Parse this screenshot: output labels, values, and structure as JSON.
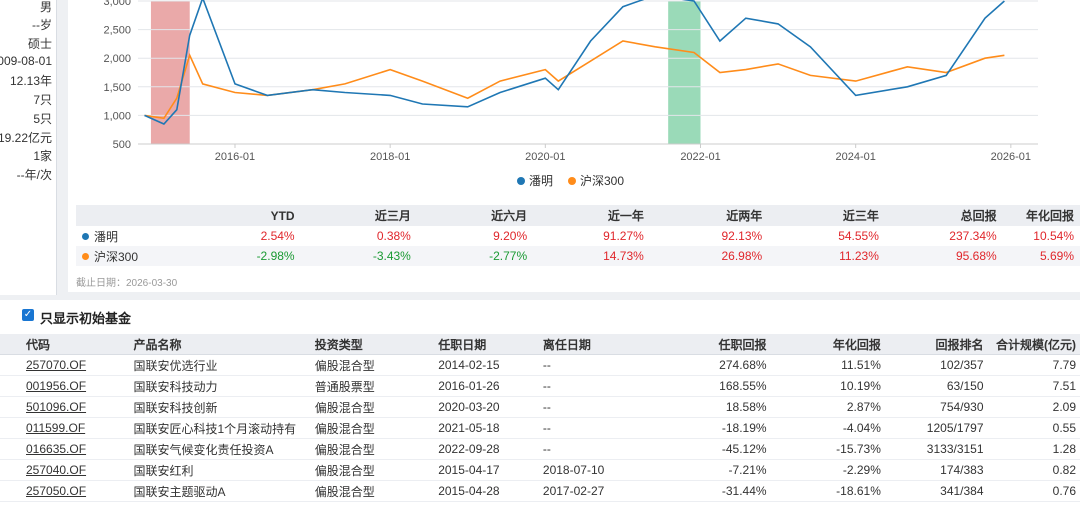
{
  "profile": {
    "values": [
      "男",
      "--岁",
      "硕士",
      "009-08-01",
      "12.13年",
      "7只",
      "5只",
      "19.22亿元",
      "1家",
      "--年/次"
    ]
  },
  "chart_data": {
    "type": "line",
    "x_ticks": [
      "2016-01",
      "2018-01",
      "2020-01",
      "2022-01",
      "2024-01",
      "2026-01"
    ],
    "y_ticks": [
      "3,000",
      "2,500",
      "2,000",
      "1,500",
      "1,000",
      "500"
    ],
    "ylim": [
      500,
      3000
    ],
    "series": [
      {
        "name": "潘明",
        "color": "#1f77b4",
        "x": [
          "2014-11",
          "2015-02",
          "2015-04",
          "2015-06",
          "2015-08",
          "2016-01",
          "2016-06",
          "2017-01",
          "2017-06",
          "2018-01",
          "2018-06",
          "2019-01",
          "2019-06",
          "2020-01",
          "2020-03",
          "2020-08",
          "2021-01",
          "2021-06",
          "2021-12",
          "2022-04",
          "2022-08",
          "2023-01",
          "2023-06",
          "2024-01",
          "2024-09",
          "2025-03",
          "2025-09",
          "2025-12"
        ],
        "values": [
          1000,
          850,
          1100,
          2400,
          3050,
          1550,
          1350,
          1450,
          1400,
          1350,
          1200,
          1150,
          1400,
          1650,
          1450,
          2300,
          2900,
          3100,
          3000,
          2300,
          2700,
          2600,
          2200,
          1350,
          1500,
          1700,
          2700,
          3000
        ]
      },
      {
        "name": "沪深300",
        "color": "#ff8c1a",
        "x": [
          "2014-11",
          "2015-02",
          "2015-04",
          "2015-06",
          "2015-08",
          "2016-01",
          "2016-06",
          "2017-01",
          "2017-06",
          "2018-01",
          "2018-06",
          "2019-01",
          "2019-06",
          "2020-01",
          "2020-03",
          "2020-08",
          "2021-01",
          "2021-06",
          "2021-12",
          "2022-04",
          "2022-08",
          "2023-01",
          "2023-06",
          "2024-01",
          "2024-09",
          "2025-03",
          "2025-09",
          "2025-12"
        ],
        "values": [
          1000,
          950,
          1300,
          2050,
          1550,
          1400,
          1350,
          1450,
          1550,
          1800,
          1600,
          1300,
          1600,
          1800,
          1600,
          1950,
          2300,
          2200,
          2100,
          1750,
          1800,
          1900,
          1700,
          1600,
          1850,
          1750,
          2000,
          2050
        ]
      }
    ],
    "shaded_regions": [
      {
        "start": "2014-12",
        "end": "2015-06",
        "color": "#e8a0a0"
      },
      {
        "start": "2021-08",
        "end": "2022-01",
        "color": "#8fd6b0"
      }
    ]
  },
  "returns_table": {
    "headers": [
      "",
      "YTD",
      "近三月",
      "近六月",
      "近一年",
      "近两年",
      "近三年",
      "总回报",
      "年化回报"
    ],
    "rows": [
      {
        "name": "潘明",
        "color": "#1f77b4",
        "values": [
          "2.54%",
          "0.38%",
          "9.20%",
          "91.27%",
          "92.13%",
          "54.55%",
          "237.34%",
          "10.54%"
        ],
        "signs": [
          "pos",
          "pos",
          "pos",
          "pos",
          "pos",
          "pos",
          "pos",
          "pos"
        ]
      },
      {
        "name": "沪深300",
        "color": "#ff8c1a",
        "values": [
          "-2.98%",
          "-3.43%",
          "-2.77%",
          "14.73%",
          "26.98%",
          "11.23%",
          "95.68%",
          "5.69%"
        ],
        "signs": [
          "neg",
          "neg",
          "neg",
          "pos",
          "pos",
          "pos",
          "pos",
          "pos"
        ]
      }
    ],
    "as_of": "截止日期：2026-03-30"
  },
  "fund_filter": {
    "label": "只显示初始基金",
    "checked": true
  },
  "funds_table": {
    "headers": [
      "代码",
      "产品名称",
      "投资类型",
      "任职日期",
      "离任日期",
      "任职回报",
      "年化回报",
      "回报排名",
      "合计规模(亿元)"
    ],
    "rows": [
      [
        "257070.OF",
        "国联安优选行业",
        "偏股混合型",
        "2014-02-15",
        "--",
        "274.68%",
        "11.51%",
        "102/357",
        "7.79"
      ],
      [
        "001956.OF",
        "国联安科技动力",
        "普通股票型",
        "2016-01-26",
        "--",
        "168.55%",
        "10.19%",
        "63/150",
        "7.51"
      ],
      [
        "501096.OF",
        "国联安科技创新",
        "偏股混合型",
        "2020-03-20",
        "--",
        "18.58%",
        "2.87%",
        "754/930",
        "2.09"
      ],
      [
        "011599.OF",
        "国联安匠心科技1个月滚动持有",
        "偏股混合型",
        "2021-05-18",
        "--",
        "-18.19%",
        "-4.04%",
        "1205/1797",
        "0.55"
      ],
      [
        "016635.OF",
        "国联安气候变化责任投资A",
        "偏股混合型",
        "2022-09-28",
        "--",
        "-45.12%",
        "-15.73%",
        "3133/3151",
        "1.28"
      ],
      [
        "257040.OF",
        "国联安红利",
        "偏股混合型",
        "2015-04-17",
        "2018-07-10",
        "-7.21%",
        "-2.29%",
        "174/383",
        "0.82"
      ],
      [
        "257050.OF",
        "国联安主题驱动A",
        "偏股混合型",
        "2015-04-28",
        "2017-02-27",
        "-31.44%",
        "-18.61%",
        "341/384",
        "0.76"
      ]
    ]
  }
}
